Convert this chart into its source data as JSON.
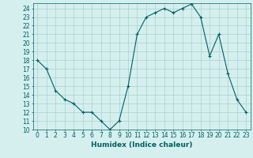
{
  "x": [
    0,
    1,
    2,
    3,
    4,
    5,
    6,
    7,
    8,
    9,
    10,
    11,
    12,
    13,
    14,
    15,
    16,
    17,
    18,
    19,
    20,
    21,
    22,
    23
  ],
  "y": [
    18,
    17,
    14.5,
    13.5,
    13,
    12,
    12,
    11,
    10,
    11,
    15,
    21,
    23,
    23.5,
    24,
    23.5,
    24,
    24.5,
    23,
    18.5,
    21,
    16.5,
    13.5,
    12
  ],
  "line_color": "#006060",
  "marker": "+",
  "bg_color": "#d5efef",
  "grid_color": "#a8d0d0",
  "xlabel": "Humidex (Indice chaleur)",
  "xlim": [
    -0.5,
    23.5
  ],
  "ylim": [
    10,
    24.6
  ],
  "yticks": [
    10,
    11,
    12,
    13,
    14,
    15,
    16,
    17,
    18,
    19,
    20,
    21,
    22,
    23,
    24
  ],
  "xticks": [
    0,
    1,
    2,
    3,
    4,
    5,
    6,
    7,
    8,
    9,
    10,
    11,
    12,
    13,
    14,
    15,
    16,
    17,
    18,
    19,
    20,
    21,
    22,
    23
  ],
  "xtick_labels": [
    "0",
    "1",
    "2",
    "3",
    "4",
    "5",
    "6",
    "7",
    "8",
    "9",
    "10",
    "11",
    "12",
    "13",
    "14",
    "15",
    "16",
    "17",
    "18",
    "19",
    "20",
    "21",
    "22",
    "23"
  ],
  "ytick_labels": [
    "10",
    "11",
    "12",
    "13",
    "14",
    "15",
    "16",
    "17",
    "18",
    "19",
    "20",
    "21",
    "22",
    "23",
    "24"
  ],
  "line_color_hex": "#006060",
  "tick_color": "#006060",
  "label_fontsize": 6.5,
  "tick_fontsize": 5.5,
  "xlabel_fontsize": 6.5
}
